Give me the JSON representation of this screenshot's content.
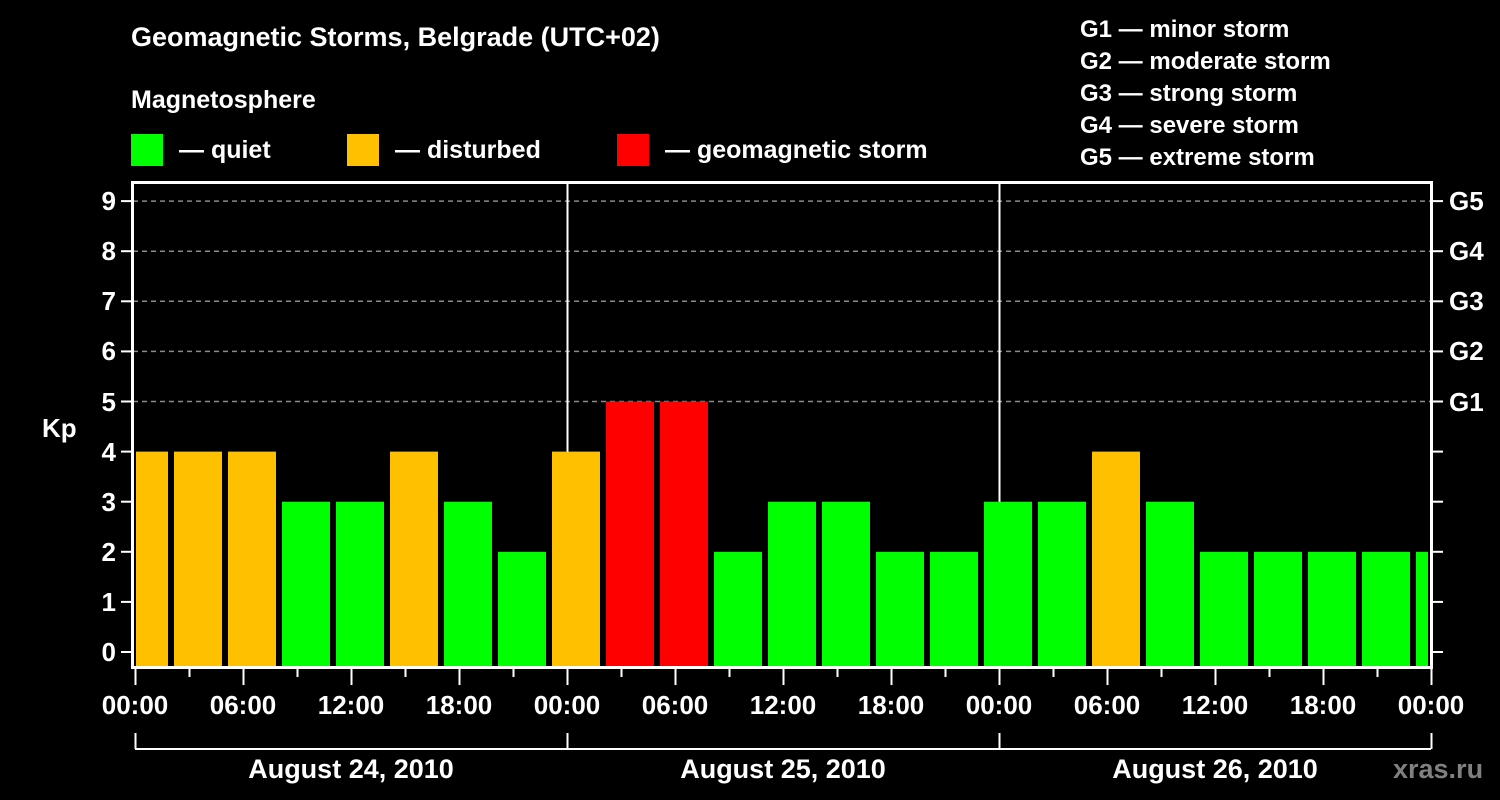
{
  "title": "Geomagnetic Storms, Belgrade (UTC+02)",
  "subtitle": "Magnetosphere",
  "legend": [
    {
      "label": "— quiet",
      "color": "#00ff00"
    },
    {
      "label": "— disturbed",
      "color": "#ffc000"
    },
    {
      "label": "— geomagnetic storm",
      "color": "#ff0000"
    }
  ],
  "storm_scale": [
    "G1 — minor storm",
    "G2 — moderate storm",
    "G3 — strong storm",
    "G4 — severe storm",
    "G5 — extreme storm"
  ],
  "watermark": "xras.ru",
  "chart_data": {
    "type": "bar",
    "title": "Geomagnetic Storms, Belgrade (UTC+02)",
    "xlabel": "",
    "ylabel": "Kp",
    "ylim": [
      0,
      9
    ],
    "y_ticks": [
      0,
      1,
      2,
      3,
      4,
      5,
      6,
      7,
      8,
      9
    ],
    "right_axis_ticks": {
      "5": "G1",
      "6": "G2",
      "7": "G3",
      "8": "G4",
      "9": "G5"
    },
    "grid": "dashed horizontal at Kp 5-9",
    "x_tick_labels": [
      "00:00",
      "06:00",
      "12:00",
      "18:00",
      "00:00",
      "06:00",
      "12:00",
      "18:00",
      "00:00",
      "06:00",
      "12:00",
      "18:00",
      "00:00"
    ],
    "dates": [
      "August 24, 2010",
      "August 25, 2010",
      "August 26, 2010"
    ],
    "interval_hours": 3,
    "first_interval_start_hour": -1,
    "values": [
      4,
      4,
      4,
      3,
      3,
      4,
      3,
      2,
      4,
      5,
      5,
      2,
      3,
      3,
      2,
      2,
      3,
      3,
      4,
      3,
      2,
      2,
      2,
      2,
      2
    ],
    "categories_color_rule": {
      "quiet": "Kp<=3",
      "disturbed": "Kp=4",
      "geomagnetic storm": "Kp>=5"
    },
    "colors": {
      "quiet": "#00ff00",
      "disturbed": "#ffc000",
      "storm": "#ff0000"
    }
  }
}
